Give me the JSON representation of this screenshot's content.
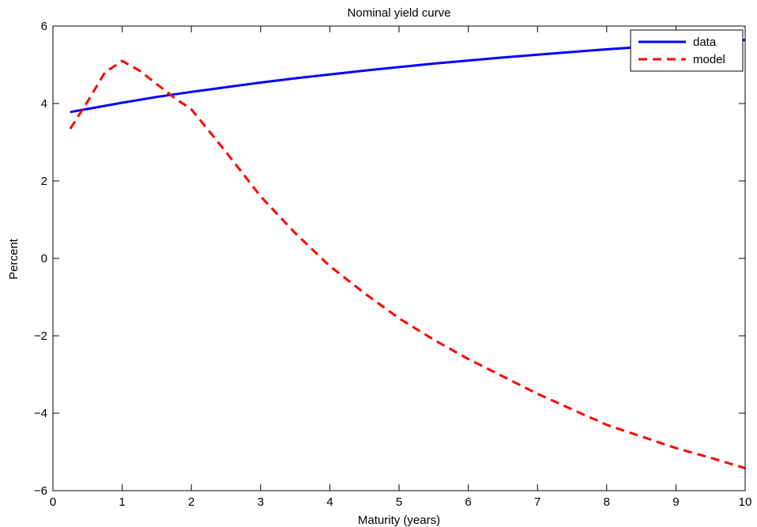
{
  "chart_data": {
    "type": "line",
    "title": "Nominal yield curve",
    "xlabel": "Maturity (years)",
    "ylabel": "Percent",
    "xlim": [
      0,
      10
    ],
    "ylim": [
      -6,
      6
    ],
    "xticks": [
      0,
      1,
      2,
      3,
      4,
      5,
      6,
      7,
      8,
      9,
      10
    ],
    "yticks": [
      -6,
      -4,
      -2,
      0,
      2,
      4,
      6
    ],
    "xtick_labels": [
      "0",
      "1",
      "2",
      "3",
      "4",
      "5",
      "6",
      "7",
      "8",
      "9",
      "10"
    ],
    "ytick_labels": [
      "−6",
      "−4",
      "−2",
      "0",
      "2",
      "4",
      "6"
    ],
    "grid": false,
    "legend_position": "top-right",
    "series": [
      {
        "name": "data",
        "color": "#0000ff",
        "style": "solid",
        "x": [
          0.25,
          0.5,
          1,
          1.5,
          2,
          2.5,
          3,
          3.5,
          4,
          4.5,
          5,
          5.5,
          6,
          6.5,
          7,
          7.5,
          8,
          8.5,
          9,
          9.5,
          10
        ],
        "y": [
          3.78,
          3.86,
          4.02,
          4.17,
          4.3,
          4.42,
          4.54,
          4.65,
          4.75,
          4.85,
          4.94,
          5.03,
          5.11,
          5.19,
          5.26,
          5.33,
          5.4,
          5.46,
          5.52,
          5.58,
          5.64
        ]
      },
      {
        "name": "model",
        "color": "#ff0000",
        "style": "dashed",
        "x": [
          0.25,
          0.5,
          0.75,
          1,
          1.25,
          1.5,
          1.75,
          2,
          2.5,
          3,
          3.5,
          4,
          4.5,
          5,
          5.5,
          6,
          6.5,
          7,
          7.5,
          8,
          8.5,
          9,
          9.5,
          10
        ],
        "y": [
          3.35,
          4.05,
          4.8,
          5.1,
          4.85,
          4.5,
          4.15,
          3.85,
          2.75,
          1.6,
          0.65,
          -0.2,
          -0.9,
          -1.55,
          -2.1,
          -2.6,
          -3.05,
          -3.5,
          -3.9,
          -4.3,
          -4.6,
          -4.9,
          -5.15,
          -5.42
        ]
      }
    ]
  }
}
